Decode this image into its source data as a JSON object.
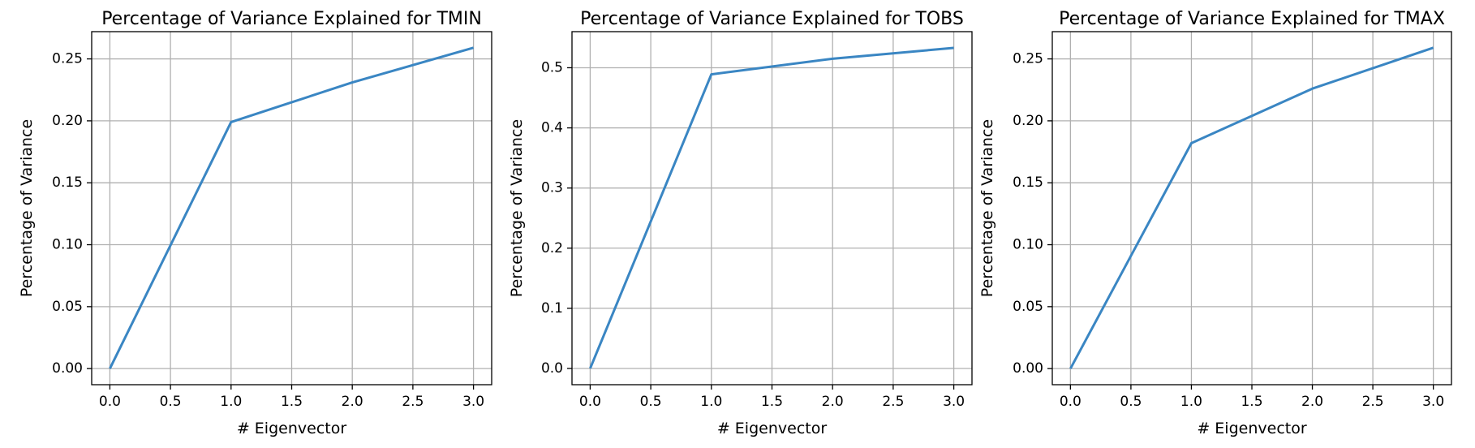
{
  "chart_data": [
    {
      "type": "line",
      "title": "Percentage of Variance Explained for TMIN",
      "xlabel": "# Eigenvector",
      "ylabel": "Percentage of Variance",
      "xlim": [
        -0.15,
        3.15
      ],
      "ylim": [
        -0.013,
        0.272
      ],
      "xticks": [
        0.0,
        0.5,
        1.0,
        1.5,
        2.0,
        2.5,
        3.0
      ],
      "xtick_labels": [
        "0.0",
        "0.5",
        "1.0",
        "1.5",
        "2.0",
        "2.5",
        "3.0"
      ],
      "yticks": [
        0.0,
        0.05,
        0.1,
        0.15,
        0.2,
        0.25
      ],
      "ytick_labels": [
        "0.00",
        "0.05",
        "0.10",
        "0.15",
        "0.20",
        "0.25"
      ],
      "grid": true,
      "series": [
        {
          "x": [
            0,
            1,
            2,
            3
          ],
          "values": [
            0.0,
            0.199,
            0.231,
            0.259
          ],
          "color": "#3a86c3"
        }
      ]
    },
    {
      "type": "line",
      "title": "Percentage of Variance Explained for TOBS",
      "xlabel": "# Eigenvector",
      "ylabel": "Percentage of Variance",
      "xlim": [
        -0.15,
        3.15
      ],
      "ylim": [
        -0.027,
        0.56
      ],
      "xticks": [
        0.0,
        0.5,
        1.0,
        1.5,
        2.0,
        2.5,
        3.0
      ],
      "xtick_labels": [
        "0.0",
        "0.5",
        "1.0",
        "1.5",
        "2.0",
        "2.5",
        "3.0"
      ],
      "yticks": [
        0.0,
        0.1,
        0.2,
        0.3,
        0.4,
        0.5
      ],
      "ytick_labels": [
        "0.0",
        "0.1",
        "0.2",
        "0.3",
        "0.4",
        "0.5"
      ],
      "grid": true,
      "series": [
        {
          "x": [
            0,
            1,
            2,
            3
          ],
          "values": [
            0.0,
            0.489,
            0.515,
            0.533
          ],
          "color": "#3a86c3"
        }
      ]
    },
    {
      "type": "line",
      "title": "Percentage of Variance Explained for TMAX",
      "xlabel": "# Eigenvector",
      "ylabel": "Percentage of Variance",
      "xlim": [
        -0.15,
        3.15
      ],
      "ylim": [
        -0.013,
        0.272
      ],
      "xticks": [
        0.0,
        0.5,
        1.0,
        1.5,
        2.0,
        2.5,
        3.0
      ],
      "xtick_labels": [
        "0.0",
        "0.5",
        "1.0",
        "1.5",
        "2.0",
        "2.5",
        "3.0"
      ],
      "yticks": [
        0.0,
        0.05,
        0.1,
        0.15,
        0.2,
        0.25
      ],
      "ytick_labels": [
        "0.00",
        "0.05",
        "0.10",
        "0.15",
        "0.20",
        "0.25"
      ],
      "grid": true,
      "series": [
        {
          "x": [
            0,
            1,
            2,
            3
          ],
          "values": [
            0.0,
            0.182,
            0.226,
            0.259
          ],
          "color": "#3a86c3"
        }
      ]
    }
  ]
}
